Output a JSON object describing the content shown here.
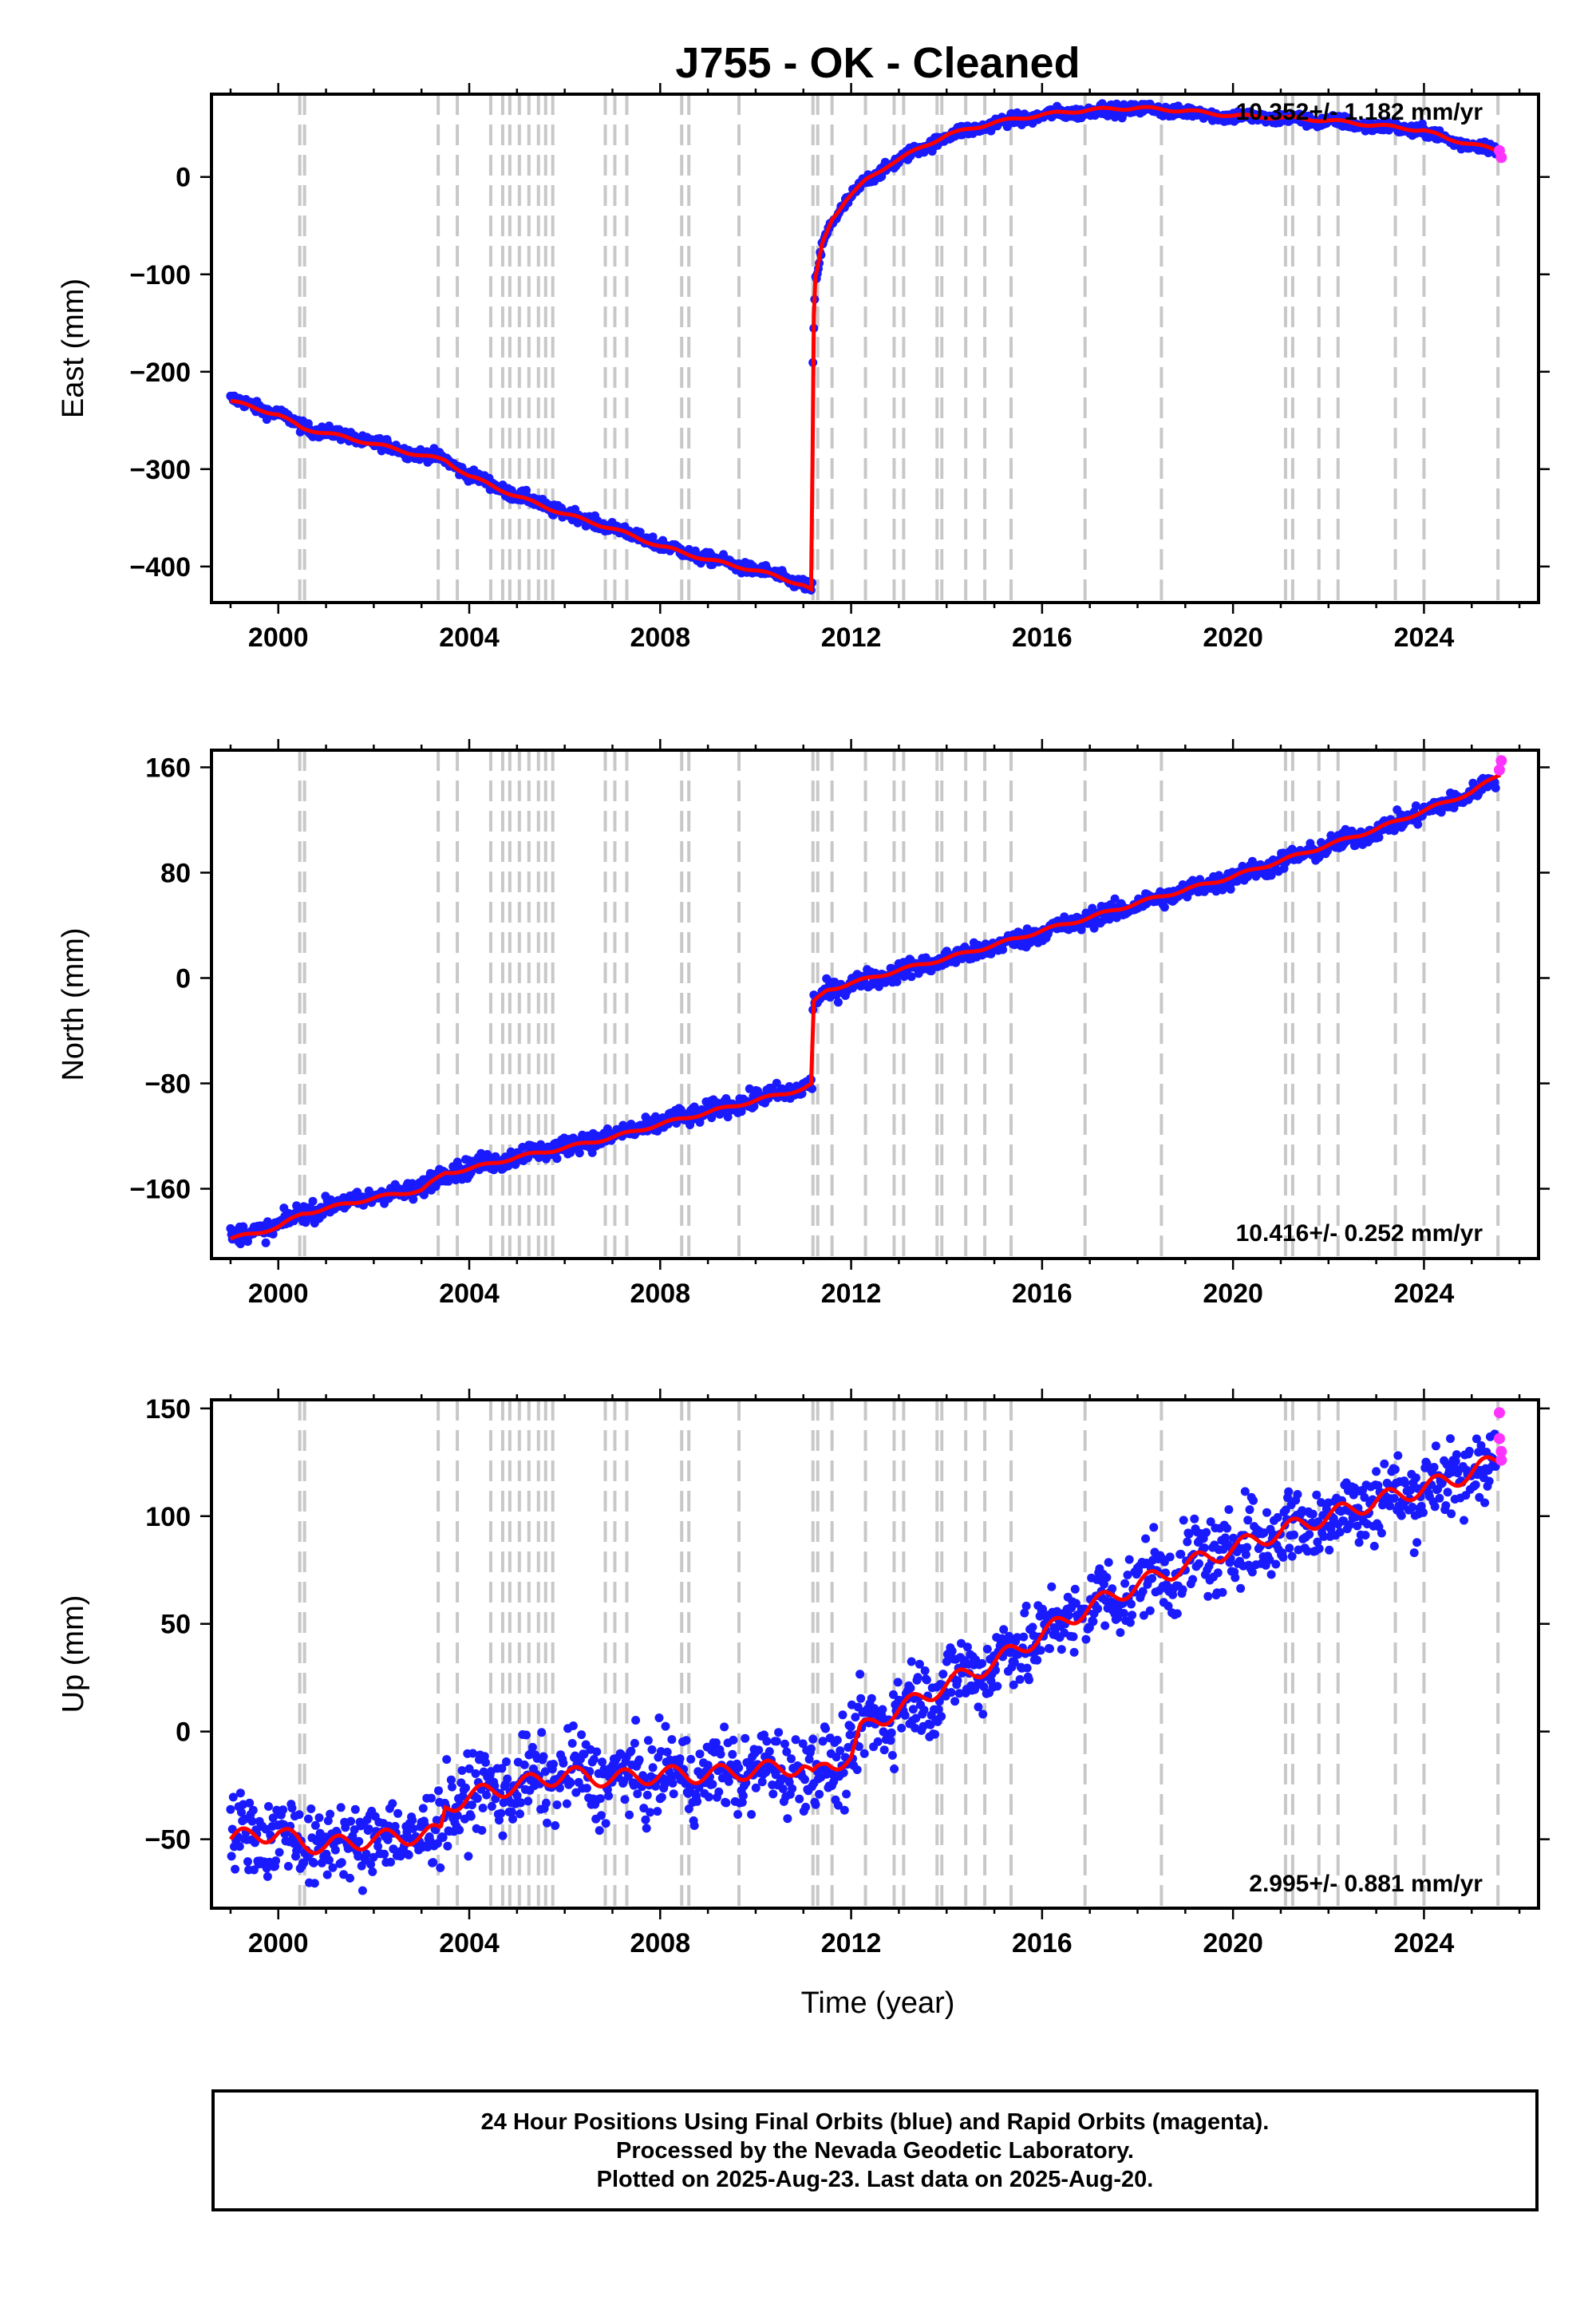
{
  "title": "J755  - OK - Cleaned",
  "xlabel": "Time (year)",
  "colors": {
    "final": "#1a1aff",
    "rapid": "#ff33ff",
    "model": "#ff0000",
    "break_lines": "#c8c8c8"
  },
  "x_ticks": [
    "2000",
    "2004",
    "2008",
    "2012",
    "2016",
    "2020",
    "2024"
  ],
  "footer": {
    "line1": "24 Hour Positions Using Final Orbits (blue) and Rapid Orbits (magenta).",
    "line2": "Processed by the Nevada Geodetic Laboratory.",
    "line3": "Plotted on 2025-Aug-23. Last data on 2025-Aug-20."
  },
  "chart_data": [
    {
      "type": "scatter",
      "name": "East",
      "ylabel": "East (mm)",
      "rate_text": "10.352+/- 1.182 mm/yr",
      "xlim": [
        1998.6,
        2026.4
      ],
      "ylim": [
        -437,
        85
      ],
      "y_ticks": [
        0,
        -100,
        -200,
        -300,
        -400
      ],
      "y_tick_labels": [
        "0",
        "−100",
        "−200",
        "−300",
        "−400"
      ],
      "grid": false,
      "break_lines": [
        2000.45,
        2000.55,
        2003.35,
        2003.75,
        2004.45,
        2004.7,
        2004.85,
        2005.05,
        2005.25,
        2005.45,
        2005.6,
        2005.75,
        2006.85,
        2007.05,
        2007.3,
        2008.45,
        2008.6,
        2009.65,
        2011.2,
        2011.3,
        2011.6,
        2012.3,
        2012.9,
        2013.1,
        2013.8,
        2013.9,
        2014.4,
        2014.8,
        2015.35,
        2016.9,
        2018.5,
        2021.1,
        2021.25,
        2021.8,
        2022.2,
        2023.4,
        2024.0,
        2025.55
      ],
      "series": [
        {
          "name": "",
          "style": "final",
          "x": [
            1999.0,
            1999.5,
            2000.0,
            2000.5,
            2001.0,
            2002.0,
            2003.0,
            2003.5,
            2004.0,
            2005.0,
            2006.0,
            2007.0,
            2008.0,
            2009.0,
            2010.0,
            2010.5,
            2011.0,
            2011.18,
            2011.2,
            2011.25,
            2011.4,
            2011.6,
            2011.9,
            2012.3,
            2012.8,
            2013.5,
            2014.0,
            2015.0,
            2016.0,
            2017.0,
            2018.0,
            2019.0,
            2020.0,
            2021.0,
            2022.0,
            2023.0,
            2024.0,
            2024.5,
            2025.0,
            2025.5
          ],
          "y": [
            -228,
            -236,
            -243,
            -257,
            -262,
            -273,
            -285,
            -290,
            -306,
            -327,
            -345,
            -360,
            -378,
            -392,
            -403,
            -410,
            -418,
            -424,
            -180,
            -110,
            -70,
            -45,
            -25,
            -5,
            12,
            30,
            42,
            55,
            63,
            68,
            70,
            67,
            62,
            60,
            57,
            52,
            47,
            38,
            33,
            28
          ]
        },
        {
          "name": "",
          "style": "rapid",
          "x": [
            2025.58,
            2025.62
          ],
          "y": [
            27,
            20
          ]
        },
        {
          "name": "",
          "style": "model",
          "x": [
            1999.0,
            1999.5,
            2000.0,
            2000.5,
            2001.0,
            2002.0,
            2003.0,
            2003.5,
            2004.0,
            2005.0,
            2006.0,
            2007.0,
            2008.0,
            2009.0,
            2010.0,
            2010.5,
            2011.0,
            2011.18,
            2011.2,
            2011.25,
            2011.4,
            2011.6,
            2011.9,
            2012.3,
            2012.8,
            2013.5,
            2014.0,
            2015.0,
            2016.0,
            2017.0,
            2018.0,
            2019.0,
            2020.0,
            2021.0,
            2022.0,
            2023.0,
            2024.0,
            2024.5,
            2025.0,
            2025.6
          ],
          "y": [
            -230,
            -237,
            -244,
            -258,
            -263,
            -274,
            -286,
            -291,
            -307,
            -328,
            -346,
            -361,
            -379,
            -393,
            -404,
            -411,
            -419,
            -425,
            -170,
            -105,
            -68,
            -43,
            -23,
            -4,
            13,
            31,
            43,
            56,
            64,
            69,
            71,
            68,
            63,
            61,
            58,
            53,
            48,
            39,
            34,
            26
          ]
        }
      ]
    },
    {
      "type": "scatter",
      "name": "North",
      "ylabel": "North (mm)",
      "rate_text": "10.416+/- 0.252 mm/yr",
      "xlim": [
        1998.6,
        2026.4
      ],
      "ylim": [
        -213,
        173
      ],
      "y_ticks": [
        160,
        80,
        0,
        -80,
        -160
      ],
      "y_tick_labels": [
        "160",
        "80",
        "0",
        "−80",
        "−160"
      ],
      "grid": false,
      "break_lines": [
        2000.45,
        2000.55,
        2003.35,
        2003.75,
        2004.45,
        2004.7,
        2004.85,
        2005.05,
        2005.25,
        2005.45,
        2005.6,
        2005.75,
        2006.85,
        2007.05,
        2007.3,
        2008.45,
        2008.6,
        2009.65,
        2011.2,
        2011.3,
        2011.6,
        2012.3,
        2012.9,
        2013.1,
        2013.8,
        2013.9,
        2014.4,
        2014.8,
        2015.35,
        2016.9,
        2018.5,
        2021.1,
        2021.25,
        2021.8,
        2022.2,
        2023.4,
        2024.0,
        2025.55
      ],
      "series": [
        {
          "name": "",
          "style": "final",
          "x": [
            1999.0,
            1999.5,
            2000.0,
            2000.5,
            2001.0,
            2002.0,
            2003.0,
            2003.5,
            2004.0,
            2005.0,
            2006.0,
            2007.0,
            2008.0,
            2009.0,
            2010.0,
            2011.0,
            2011.18,
            2011.2,
            2011.5,
            2012.0,
            2013.0,
            2014.0,
            2015.0,
            2016.0,
            2017.0,
            2018.0,
            2019.0,
            2020.0,
            2021.0,
            2022.0,
            2023.0,
            2024.0,
            2025.0,
            2025.5
          ],
          "y": [
            -197,
            -193,
            -188,
            -178,
            -174,
            -166,
            -160,
            -147,
            -144,
            -135,
            -128,
            -120,
            -110,
            -101,
            -92,
            -83,
            -80,
            -20,
            -10,
            -5,
            5,
            14,
            24,
            35,
            45,
            56,
            66,
            76,
            88,
            100,
            112,
            126,
            140,
            152
          ]
        },
        {
          "name": "",
          "style": "rapid",
          "x": [
            2025.58,
            2025.62
          ],
          "y": [
            158,
            165
          ]
        },
        {
          "name": "",
          "style": "model",
          "x": [
            1999.0,
            1999.5,
            2000.0,
            2000.5,
            2001.0,
            2002.0,
            2003.0,
            2003.5,
            2004.0,
            2005.0,
            2006.0,
            2007.0,
            2008.0,
            2009.0,
            2010.0,
            2011.0,
            2011.18,
            2011.2,
            2011.5,
            2012.0,
            2013.0,
            2014.0,
            2015.0,
            2016.0,
            2017.0,
            2018.0,
            2019.0,
            2020.0,
            2021.0,
            2022.0,
            2023.0,
            2024.0,
            2025.0,
            2025.6
          ],
          "y": [
            -198,
            -194,
            -189,
            -179,
            -175,
            -167,
            -161,
            -148,
            -145,
            -136,
            -129,
            -121,
            -111,
            -102,
            -93,
            -84,
            -81,
            -19,
            -9,
            -4,
            6,
            15,
            25,
            36,
            46,
            57,
            67,
            77,
            89,
            101,
            113,
            127,
            141,
            155
          ]
        }
      ]
    },
    {
      "type": "scatter",
      "name": "Up",
      "ylabel": "Up (mm)",
      "rate_text": "2.995+/- 0.881 mm/yr",
      "xlim": [
        1998.6,
        2026.4
      ],
      "ylim": [
        -82,
        154
      ],
      "y_ticks": [
        150,
        100,
        50,
        0,
        -50
      ],
      "y_tick_labels": [
        "150",
        "100",
        "50",
        "0",
        "−50"
      ],
      "grid": false,
      "break_lines": [
        2000.45,
        2000.55,
        2003.35,
        2003.75,
        2004.45,
        2004.7,
        2004.85,
        2005.05,
        2005.25,
        2005.45,
        2005.6,
        2005.75,
        2006.85,
        2007.05,
        2007.3,
        2008.45,
        2008.6,
        2009.65,
        2011.2,
        2011.3,
        2011.6,
        2012.3,
        2012.9,
        2013.1,
        2013.8,
        2013.9,
        2014.4,
        2014.8,
        2015.35,
        2016.9,
        2018.5,
        2021.1,
        2021.25,
        2021.8,
        2022.2,
        2023.4,
        2024.0,
        2025.55
      ],
      "series": [
        {
          "name": "",
          "style": "final",
          "x": [
            1999.0,
            1999.5,
            2000.0,
            2000.5,
            2001.0,
            2002.0,
            2003.0,
            2003.4,
            2003.5,
            2004.0,
            2005.0,
            2006.0,
            2007.0,
            2008.0,
            2009.0,
            2010.0,
            2011.0,
            2011.2,
            2011.5,
            2012.0,
            2012.2,
            2012.5,
            2013.0,
            2014.0,
            2015.0,
            2016.0,
            2017.0,
            2018.0,
            2019.0,
            2020.0,
            2021.0,
            2022.0,
            2023.0,
            2024.0,
            2025.0,
            2025.5
          ],
          "y": [
            -50,
            -48,
            -47,
            -52,
            -53,
            -50,
            -48,
            -47,
            -35,
            -30,
            -25,
            -20,
            -22,
            -20,
            -20,
            -18,
            -16,
            -22,
            -15,
            -12,
            0,
            5,
            10,
            22,
            32,
            45,
            58,
            68,
            77,
            85,
            93,
            100,
            107,
            113,
            120,
            125
          ]
        },
        {
          "name": "",
          "style": "rapid",
          "x": [
            2025.58,
            2025.58,
            2025.62,
            2025.62
          ],
          "y": [
            148,
            136,
            130,
            126
          ]
        },
        {
          "name": "",
          "style": "model",
          "x": [
            1999.0,
            1999.5,
            2000.0,
            2000.5,
            2001.0,
            2002.0,
            2003.0,
            2003.4,
            2003.5,
            2004.0,
            2005.0,
            2006.0,
            2007.0,
            2008.0,
            2009.0,
            2010.0,
            2011.0,
            2011.2,
            2011.5,
            2012.0,
            2012.2,
            2012.5,
            2013.0,
            2014.0,
            2015.0,
            2016.0,
            2017.0,
            2018.0,
            2019.0,
            2020.0,
            2021.0,
            2022.0,
            2023.0,
            2024.0,
            2025.0,
            2025.6
          ],
          "y": [
            -50,
            -48,
            -47,
            -52,
            -53,
            -50,
            -48,
            -47,
            -35,
            -30,
            -25,
            -20,
            -22,
            -20,
            -20,
            -18,
            -16,
            -22,
            -15,
            -12,
            0,
            5,
            10,
            22,
            32,
            45,
            58,
            68,
            77,
            85,
            93,
            100,
            107,
            113,
            120,
            127
          ]
        }
      ]
    }
  ]
}
